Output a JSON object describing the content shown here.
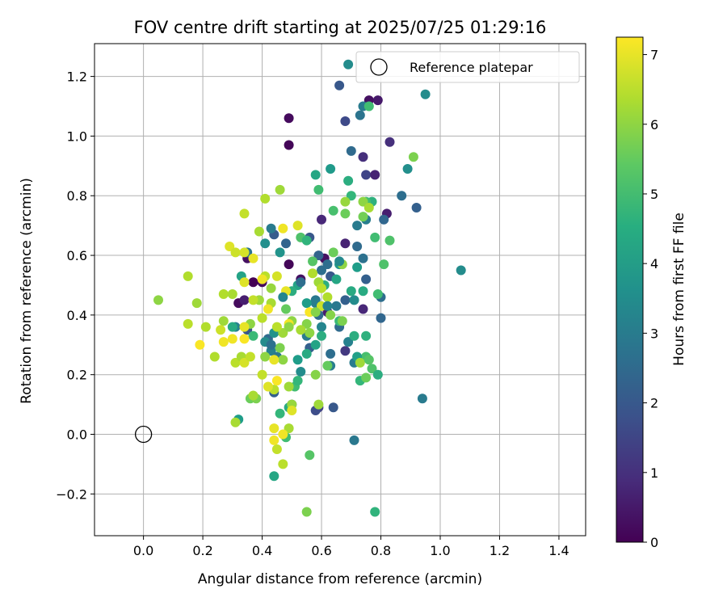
{
  "chart_data": {
    "type": "scatter",
    "title": "FOV centre drift starting at 2025/07/25 01:29:16",
    "xlabel": "Angular distance from reference (arcmin)",
    "ylabel": "Rotation from reference (arcmin)",
    "xlim": [
      -0.165,
      1.49
    ],
    "ylim": [
      -0.34,
      1.31
    ],
    "xticks": [
      0.0,
      0.2,
      0.4,
      0.6,
      0.8,
      1.0,
      1.2,
      1.4
    ],
    "xtick_labels": [
      "0.0",
      "0.2",
      "0.4",
      "0.6",
      "0.8",
      "1.0",
      "1.2",
      "1.4"
    ],
    "yticks": [
      -0.2,
      0.0,
      0.2,
      0.4,
      0.6,
      0.8,
      1.0,
      1.2
    ],
    "ytick_labels": [
      "−0.2",
      "0.0",
      "0.2",
      "0.4",
      "0.6",
      "0.8",
      "1.0",
      "1.2"
    ],
    "grid": true,
    "legend": {
      "placement": "top-right",
      "entries": [
        "Reference platepar"
      ]
    },
    "reference_point": {
      "x": 0.0,
      "y": 0.0,
      "label": "Reference platepar"
    },
    "colorbar": {
      "label": "Hours from first FF file",
      "colormap": "viridis",
      "range": [
        0,
        7.25
      ],
      "ticks": [
        0,
        1,
        2,
        3,
        4,
        5,
        6,
        7
      ],
      "tick_labels": [
        "0",
        "1",
        "2",
        "3",
        "4",
        "5",
        "6",
        "7"
      ]
    },
    "points": [
      [
        0.49,
        1.06,
        0.2
      ],
      [
        0.49,
        0.97,
        0.1
      ],
      [
        0.76,
        1.12,
        0.3
      ],
      [
        0.79,
        1.12,
        0.5
      ],
      [
        0.83,
        0.98,
        1.0
      ],
      [
        0.74,
        0.93,
        1.0
      ],
      [
        0.75,
        0.87,
        1.5
      ],
      [
        0.78,
        0.87,
        0.7
      ],
      [
        0.82,
        0.74,
        0.6
      ],
      [
        0.92,
        0.76,
        2.2
      ],
      [
        0.6,
        0.72,
        0.8
      ],
      [
        0.68,
        0.64,
        0.7
      ],
      [
        0.61,
        0.59,
        0.3
      ],
      [
        0.49,
        0.57,
        0.1
      ],
      [
        0.53,
        0.52,
        0.3
      ],
      [
        0.4,
        0.51,
        0.2
      ],
      [
        0.37,
        0.51,
        0.0
      ],
      [
        0.35,
        0.59,
        0.3
      ],
      [
        0.32,
        0.44,
        0.2
      ],
      [
        0.34,
        0.45,
        0.6
      ],
      [
        0.74,
        0.42,
        0.8
      ],
      [
        0.68,
        0.28,
        1.2
      ],
      [
        0.62,
        0.41,
        0.6
      ],
      [
        0.66,
        1.17,
        2.0
      ],
      [
        0.68,
        1.05,
        1.6
      ],
      [
        0.7,
        0.95,
        2.5
      ],
      [
        0.74,
        1.1,
        3.0
      ],
      [
        0.73,
        1.07,
        2.8
      ],
      [
        0.95,
        1.14,
        3.5
      ],
      [
        0.69,
        1.24,
        3.5
      ],
      [
        0.89,
        0.89,
        3.6
      ],
      [
        0.87,
        0.8,
        2.6
      ],
      [
        0.81,
        0.72,
        2.4
      ],
      [
        0.75,
        0.72,
        3.1
      ],
      [
        0.72,
        0.7,
        3.0
      ],
      [
        0.72,
        0.63,
        2.5
      ],
      [
        0.74,
        0.59,
        2.7
      ],
      [
        0.75,
        0.52,
        2.2
      ],
      [
        0.8,
        0.46,
        2.6
      ],
      [
        0.8,
        0.39,
        2.4
      ],
      [
        1.07,
        0.55,
        3.5
      ],
      [
        0.94,
        0.12,
        3.0
      ],
      [
        0.71,
        -0.02,
        2.9
      ],
      [
        0.63,
        0.23,
        3.1
      ],
      [
        0.64,
        0.09,
        2.0
      ],
      [
        0.59,
        0.09,
        1.4
      ],
      [
        0.58,
        0.08,
        1.7
      ],
      [
        0.5,
        0.1,
        1.9
      ],
      [
        0.44,
        0.14,
        2.2
      ],
      [
        0.35,
        0.35,
        2.0
      ],
      [
        0.44,
        0.67,
        2.1
      ],
      [
        0.48,
        0.64,
        2.3
      ],
      [
        0.56,
        0.66,
        2.0
      ],
      [
        0.59,
        0.6,
        2.3
      ],
      [
        0.62,
        0.57,
        2.6
      ],
      [
        0.63,
        0.53,
        2.0
      ],
      [
        0.6,
        0.55,
        2.6
      ],
      [
        0.58,
        0.45,
        2.9
      ],
      [
        0.59,
        0.4,
        2.5
      ],
      [
        0.66,
        0.36,
        2.5
      ],
      [
        0.69,
        0.31,
        3.2
      ],
      [
        0.71,
        0.24,
        3.0
      ],
      [
        0.63,
        0.27,
        2.6
      ],
      [
        0.56,
        0.29,
        2.2
      ],
      [
        0.53,
        0.21,
        3.5
      ],
      [
        0.55,
        0.33,
        3.0
      ],
      [
        0.6,
        0.36,
        3.3
      ],
      [
        0.58,
        0.44,
        3.1
      ],
      [
        0.65,
        0.43,
        2.9
      ],
      [
        0.68,
        0.45,
        2.2
      ],
      [
        0.42,
        0.32,
        2.5
      ],
      [
        0.43,
        0.28,
        3.2
      ],
      [
        0.45,
        0.26,
        2.9
      ],
      [
        0.44,
        0.34,
        3.7
      ],
      [
        0.41,
        0.31,
        3.5
      ],
      [
        0.35,
        0.61,
        2.8
      ],
      [
        0.33,
        0.53,
        4.2
      ],
      [
        0.31,
        0.36,
        3.2
      ],
      [
        0.43,
        0.69,
        3.0
      ],
      [
        0.41,
        0.64,
        3.6
      ],
      [
        0.46,
        0.61,
        3.7
      ],
      [
        0.52,
        0.5,
        4.2
      ],
      [
        0.5,
        0.48,
        4.5
      ],
      [
        0.55,
        0.44,
        4.0
      ],
      [
        0.61,
        0.5,
        4.5
      ],
      [
        0.65,
        0.52,
        4.3
      ],
      [
        0.66,
        0.57,
        3.8
      ],
      [
        0.7,
        0.48,
        4.4
      ],
      [
        0.71,
        0.45,
        3.5
      ],
      [
        0.74,
        0.48,
        4.4
      ],
      [
        0.58,
        0.87,
        4.3
      ],
      [
        0.63,
        0.89,
        3.9
      ],
      [
        0.69,
        0.85,
        4.5
      ],
      [
        0.7,
        0.8,
        4.8
      ],
      [
        0.77,
        0.78,
        4.6
      ],
      [
        0.75,
        0.78,
        5.0
      ],
      [
        0.78,
        0.66,
        5.0
      ],
      [
        0.81,
        0.57,
        5.2
      ],
      [
        0.79,
        0.47,
        5.0
      ],
      [
        0.75,
        0.33,
        4.6
      ],
      [
        0.75,
        0.26,
        5.1
      ],
      [
        0.77,
        0.22,
        5.2
      ],
      [
        0.79,
        0.2,
        4.5
      ],
      [
        0.73,
        0.18,
        4.8
      ],
      [
        0.72,
        0.26,
        4.1
      ],
      [
        0.71,
        0.33,
        4.5
      ],
      [
        0.66,
        0.38,
        4.9
      ],
      [
        0.6,
        0.33,
        4.5
      ],
      [
        0.58,
        0.3,
        4.2
      ],
      [
        0.55,
        0.27,
        4.4
      ],
      [
        0.52,
        0.25,
        4.0
      ],
      [
        0.51,
        0.16,
        5.0
      ],
      [
        0.52,
        0.18,
        4.8
      ],
      [
        0.49,
        0.09,
        4.4
      ],
      [
        0.46,
        0.07,
        4.8
      ],
      [
        0.44,
        -0.14,
        4.3
      ],
      [
        0.48,
        -0.01,
        5.0
      ],
      [
        0.56,
        -0.07,
        5.3
      ],
      [
        0.55,
        -0.26,
        5.8
      ],
      [
        0.78,
        -0.26,
        4.7
      ],
      [
        0.32,
        0.05,
        4.0
      ],
      [
        0.3,
        0.36,
        4.4
      ],
      [
        0.37,
        0.33,
        4.9
      ],
      [
        0.36,
        0.12,
        5.6
      ],
      [
        0.38,
        0.12,
        5.8
      ],
      [
        0.53,
        0.66,
        5.2
      ],
      [
        0.55,
        0.65,
        4.7
      ],
      [
        0.57,
        0.58,
        5.3
      ],
      [
        0.59,
        0.82,
        5.0
      ],
      [
        0.64,
        0.75,
        5.1
      ],
      [
        0.68,
        0.74,
        5.6
      ],
      [
        0.74,
        0.73,
        5.7
      ],
      [
        0.76,
        1.1,
        5.0
      ],
      [
        0.83,
        0.65,
        5.2
      ],
      [
        0.91,
        0.93,
        5.8
      ],
      [
        0.74,
        0.78,
        6.0
      ],
      [
        0.68,
        0.78,
        6.1
      ],
      [
        0.76,
        0.76,
        6.3
      ],
      [
        0.64,
        0.61,
        5.6
      ],
      [
        0.67,
        0.57,
        6.0
      ],
      [
        0.57,
        0.54,
        6.4
      ],
      [
        0.59,
        0.51,
        6.2
      ],
      [
        0.6,
        0.49,
        6.5
      ],
      [
        0.62,
        0.46,
        6.4
      ],
      [
        0.6,
        0.43,
        6.7
      ],
      [
        0.63,
        0.4,
        5.9
      ],
      [
        0.67,
        0.38,
        5.8
      ],
      [
        0.56,
        0.34,
        6.0
      ],
      [
        0.55,
        0.37,
        5.9
      ],
      [
        0.53,
        0.35,
        6.3
      ],
      [
        0.5,
        0.38,
        6.0
      ],
      [
        0.48,
        0.42,
        5.5
      ],
      [
        0.47,
        0.34,
        6.2
      ],
      [
        0.46,
        0.29,
        5.8
      ],
      [
        0.47,
        0.25,
        6.0
      ],
      [
        0.45,
        0.36,
        6.5
      ],
      [
        0.43,
        0.44,
        6.3
      ],
      [
        0.39,
        0.45,
        6.2
      ],
      [
        0.37,
        0.45,
        6.6
      ],
      [
        0.4,
        0.39,
        6.5
      ],
      [
        0.41,
        0.79,
        6.4
      ],
      [
        0.46,
        0.82,
        6.2
      ],
      [
        0.34,
        0.74,
        6.6
      ],
      [
        0.39,
        0.68,
        6.3
      ],
      [
        0.45,
        0.53,
        6.8
      ],
      [
        0.41,
        0.53,
        6.5
      ],
      [
        0.43,
        0.49,
        6.1
      ],
      [
        0.36,
        0.37,
        6.0
      ],
      [
        0.3,
        0.47,
        6.3
      ],
      [
        0.27,
        0.47,
        6.4
      ],
      [
        0.27,
        0.38,
        6.2
      ],
      [
        0.26,
        0.35,
        6.7
      ],
      [
        0.21,
        0.36,
        6.4
      ],
      [
        0.15,
        0.37,
        6.5
      ],
      [
        0.15,
        0.53,
        6.4
      ],
      [
        0.18,
        0.44,
        6.2
      ],
      [
        0.05,
        0.45,
        6.0
      ],
      [
        0.24,
        0.26,
        6.4
      ],
      [
        0.31,
        0.24,
        6.5
      ],
      [
        0.33,
        0.26,
        6.3
      ],
      [
        0.34,
        0.24,
        6.8
      ],
      [
        0.36,
        0.26,
        6.6
      ],
      [
        0.41,
        0.26,
        6.0
      ],
      [
        0.4,
        0.2,
        6.6
      ],
      [
        0.44,
        0.15,
        6.5
      ],
      [
        0.42,
        0.16,
        6.9
      ],
      [
        0.49,
        0.16,
        6.2
      ],
      [
        0.5,
        0.1,
        6.1
      ],
      [
        0.49,
        0.02,
        6.3
      ],
      [
        0.47,
        -0.1,
        6.5
      ],
      [
        0.45,
        -0.05,
        6.6
      ],
      [
        0.31,
        0.04,
        6.3
      ],
      [
        0.37,
        0.13,
        6.3
      ],
      [
        0.34,
        0.36,
        7.0
      ],
      [
        0.3,
        0.32,
        7.1
      ],
      [
        0.29,
        0.63,
        6.9
      ],
      [
        0.31,
        0.61,
        6.7
      ],
      [
        0.34,
        0.61,
        6.8
      ],
      [
        0.37,
        0.59,
        7.0
      ],
      [
        0.4,
        0.52,
        7.1
      ],
      [
        0.42,
        0.42,
        7.1
      ],
      [
        0.44,
        0.25,
        7.0
      ],
      [
        0.45,
        0.18,
        7.2
      ],
      [
        0.44,
        0.02,
        7.0
      ],
      [
        0.44,
        -0.02,
        7.1
      ],
      [
        0.47,
        0.0,
        7.1
      ],
      [
        0.49,
        0.37,
        7.1
      ],
      [
        0.5,
        0.08,
        6.9
      ],
      [
        0.52,
        0.7,
        6.9
      ],
      [
        0.47,
        0.69,
        7.1
      ],
      [
        0.48,
        0.48,
        7.0
      ],
      [
        0.56,
        0.41,
        7.2
      ],
      [
        0.19,
        0.3,
        7.2
      ],
      [
        0.27,
        0.31,
        7.1
      ],
      [
        0.34,
        0.32,
        7.2
      ],
      [
        0.34,
        0.51,
        6.9
      ],
      [
        0.49,
        0.36,
        6.0
      ],
      [
        0.58,
        0.41,
        5.9
      ],
      [
        0.62,
        0.23,
        5.5
      ],
      [
        0.73,
        0.24,
        6.2
      ],
      [
        0.76,
        0.25,
        5.3
      ],
      [
        0.75,
        0.19,
        5.6
      ],
      [
        0.58,
        0.2,
        5.9
      ],
      [
        0.59,
        0.1,
        6.2
      ],
      [
        0.66,
        0.58,
        3.4
      ],
      [
        0.62,
        0.43,
        3.2
      ],
      [
        0.72,
        0.56,
        4.0
      ],
      [
        0.53,
        0.51,
        2.6
      ],
      [
        0.47,
        0.46,
        3.3
      ],
      [
        0.43,
        0.3,
        2.7
      ]
    ]
  }
}
